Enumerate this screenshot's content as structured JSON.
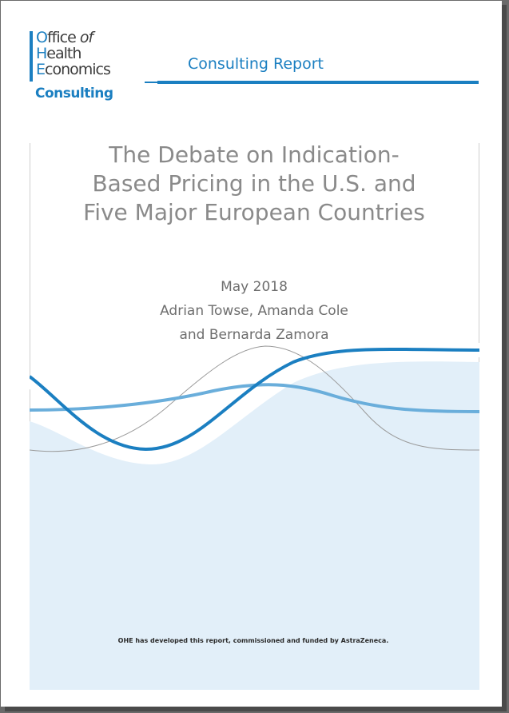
{
  "logo": {
    "line1_cap": "O",
    "line1_rest": "ffice ",
    "line1_italic": "of",
    "line2_cap": "H",
    "line2_rest": "ealth",
    "line3_cap": "E",
    "line3_rest": "conomics",
    "consulting": "Consulting"
  },
  "header": {
    "title": "Consulting Report"
  },
  "document": {
    "title_lines": [
      "The Debate on Indication-",
      "Based Pricing in the U.S. and",
      "Five Major European Countries"
    ],
    "date": "May 2018",
    "authors_line1": "Adrian Towse, Amanda Cole",
    "authors_line2": "and Bernarda Zamora",
    "footer_note": "OHE has developed this report, commissioned and funded by AstraZeneca."
  },
  "colors": {
    "brand_blue": "#1b7fc1",
    "light_blue_fill": "#e2eff9",
    "mid_blue_line": "#6aaedb",
    "grey_line": "#9a9a9a",
    "title_grey": "#8a8a8a"
  }
}
